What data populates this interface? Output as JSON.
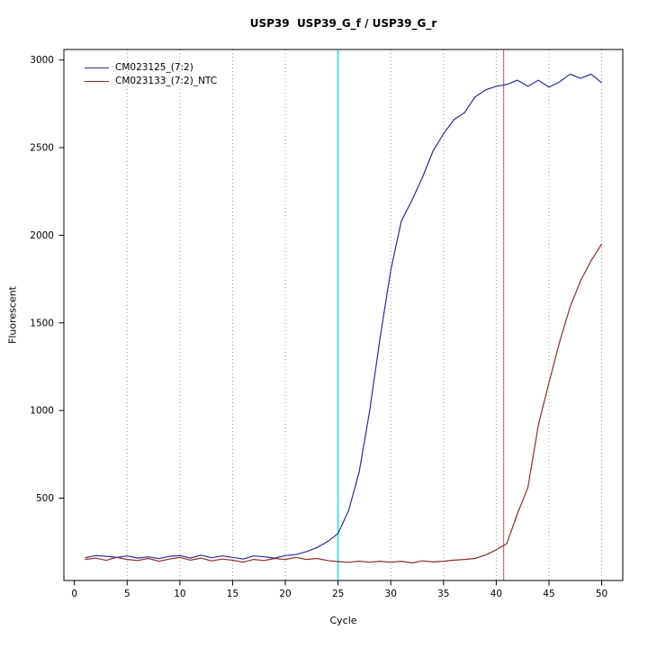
{
  "chart_data": {
    "type": "line",
    "title": "USP39  USP39_G_f / USP39_G_r",
    "xlabel": "Cycle",
    "ylabel": "Fluorescent",
    "xlim": [
      -1,
      52
    ],
    "ylim": [
      30,
      3060
    ],
    "xticks": [
      0,
      5,
      10,
      15,
      20,
      25,
      30,
      35,
      40,
      45,
      50
    ],
    "yticks": [
      500,
      1000,
      1500,
      2000,
      2500,
      3000
    ],
    "grid": "vertical-dotted",
    "grid_color": "#999999",
    "legend_position": "top-left",
    "x": [
      1,
      2,
      3,
      4,
      5,
      6,
      7,
      8,
      9,
      10,
      11,
      12,
      13,
      14,
      15,
      16,
      17,
      18,
      19,
      20,
      21,
      22,
      23,
      24,
      25,
      26,
      27,
      28,
      29,
      30,
      31,
      32,
      33,
      34,
      35,
      36,
      37,
      38,
      39,
      40,
      41,
      42,
      43,
      44,
      45,
      46,
      47,
      48,
      49,
      50
    ],
    "series": [
      {
        "name": "CM023125_(7:2)",
        "color": "#2b2b9c",
        "values": [
          160,
          172,
          168,
          162,
          170,
          158,
          165,
          155,
          168,
          172,
          158,
          175,
          160,
          170,
          162,
          152,
          170,
          165,
          158,
          172,
          178,
          195,
          218,
          252,
          298,
          430,
          650,
          1000,
          1420,
          1800,
          2080,
          2200,
          2330,
          2480,
          2580,
          2660,
          2700,
          2790,
          2830,
          2850,
          2860,
          2885,
          2850,
          2885,
          2845,
          2875,
          2920,
          2895,
          2920,
          2870
        ]
      },
      {
        "name": "CM023133_(7:2)_NTC",
        "color": "#8b2f2b",
        "values": [
          150,
          158,
          145,
          162,
          150,
          144,
          156,
          140,
          152,
          162,
          146,
          158,
          142,
          152,
          146,
          134,
          150,
          144,
          156,
          150,
          162,
          150,
          156,
          144,
          138,
          134,
          140,
          134,
          140,
          134,
          140,
          130,
          142,
          136,
          140,
          146,
          150,
          156,
          176,
          205,
          240,
          410,
          560,
          920,
          1160,
          1390,
          1590,
          1740,
          1855,
          1950
        ]
      }
    ],
    "vlines": [
      {
        "x": 25,
        "color": "#00e0e8"
      },
      {
        "x": 40.7,
        "color": "#b08080"
      }
    ]
  }
}
